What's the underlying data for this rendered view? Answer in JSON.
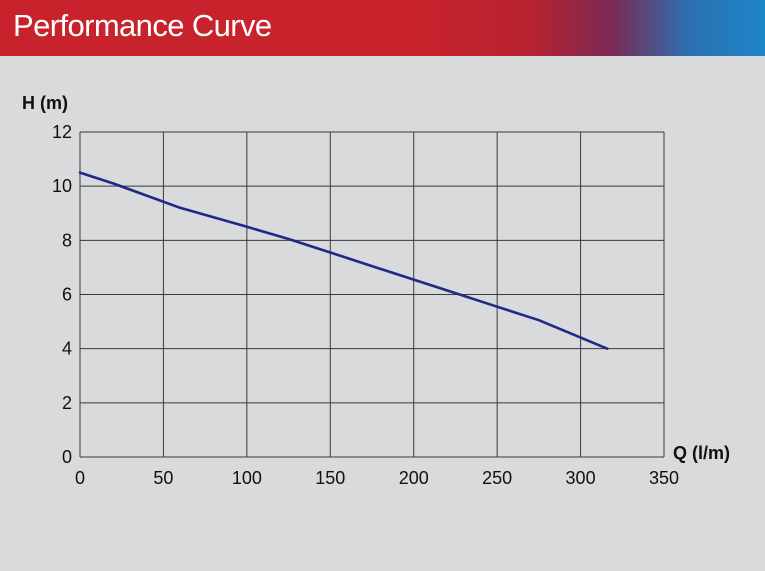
{
  "header": {
    "title": "Performance Curve",
    "colors": {
      "red": "#c8232c",
      "blue": "#1b86c8"
    }
  },
  "chart_data": {
    "type": "line",
    "title": "Performance Curve",
    "xlabel": "Q (l/m)",
    "ylabel": "H (m)",
    "xlim": [
      0,
      350
    ],
    "ylim": [
      0,
      12
    ],
    "xticks": [
      0,
      50,
      100,
      150,
      200,
      250,
      300,
      350
    ],
    "yticks": [
      0,
      2,
      4,
      6,
      8,
      10,
      12
    ],
    "grid": true,
    "series": [
      {
        "color": "#1c2a8a",
        "x": [
          0,
          20,
          40,
          60,
          80,
          100,
          125,
          150,
          175,
          200,
          225,
          250,
          275,
          316
        ],
        "y": [
          10.5,
          10.1,
          9.65,
          9.2,
          8.85,
          8.5,
          8.05,
          7.55,
          7.05,
          6.55,
          6.05,
          5.55,
          5.05,
          4.0
        ]
      }
    ]
  }
}
